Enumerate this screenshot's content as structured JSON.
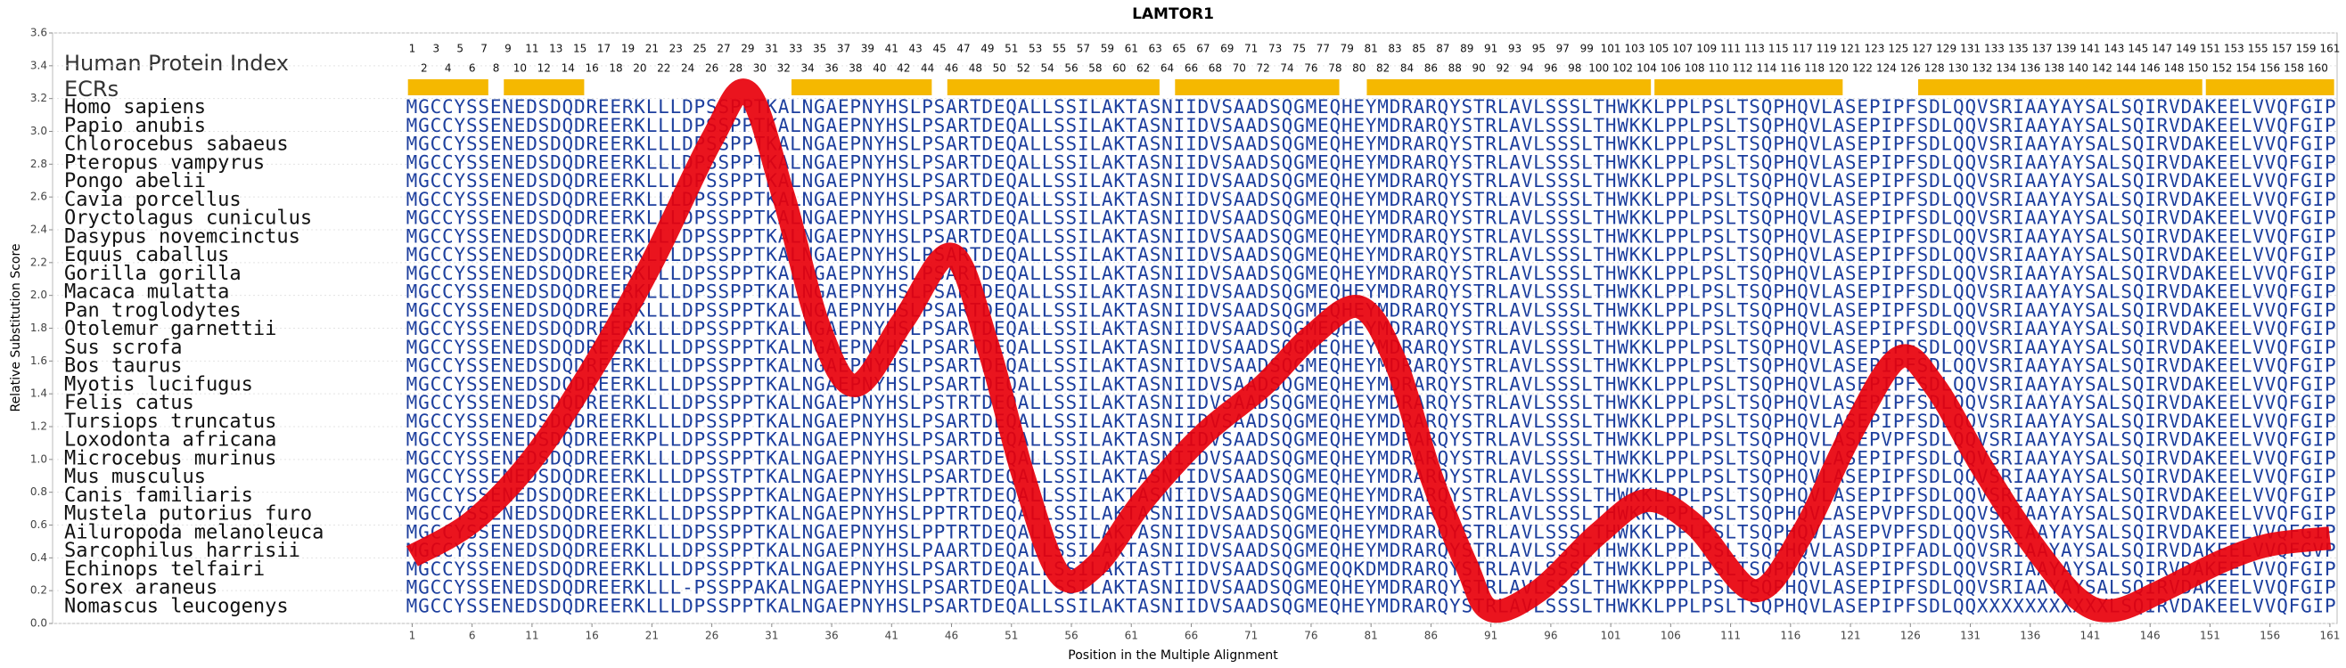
{
  "chart_data": {
    "type": "line",
    "title": "LAMTOR1",
    "xlabel": "Position in the Multiple Alignment",
    "ylabel": "Relative Substitution Score",
    "xlim": [
      -29,
      161.6
    ],
    "ylim": [
      0,
      3.6
    ],
    "xticks": [
      1,
      6,
      11,
      16,
      21,
      26,
      31,
      36,
      41,
      46,
      51,
      56,
      61,
      66,
      71,
      76,
      81,
      86,
      91,
      96,
      101,
      106,
      111,
      116,
      121,
      126,
      131,
      136,
      141,
      146,
      151,
      156,
      161
    ],
    "yticks": [
      {
        "value": 0,
        "label": "0.0"
      },
      0.2,
      0.4,
      0.6,
      0.8,
      {
        "value": 1,
        "label": "1.0"
      },
      1.2,
      1.4,
      1.6,
      1.8,
      {
        "value": 2,
        "label": "2.0"
      },
      2.2,
      2.4,
      2.6,
      2.8,
      {
        "value": 3,
        "label": "3.0"
      },
      3.2,
      3.4,
      3.6
    ],
    "grid": true,
    "color": "#e8000b",
    "x": [
      1,
      6,
      11,
      16,
      21,
      26,
      29,
      32,
      35,
      38,
      42,
      46,
      49,
      52,
      55,
      58,
      62,
      67,
      72,
      76,
      80,
      83,
      86,
      89,
      91,
      95,
      100,
      104,
      108,
      113,
      117,
      121,
      125,
      128,
      132,
      136,
      140,
      143,
      147,
      152,
      156,
      161
    ],
    "values": [
      0.41,
      0.62,
      1.0,
      1.55,
      2.2,
      2.95,
      3.24,
      2.6,
      1.8,
      1.45,
      1.85,
      2.25,
      1.7,
      0.9,
      0.3,
      0.35,
      0.75,
      1.15,
      1.45,
      1.75,
      1.93,
      1.6,
      0.9,
      0.35,
      0.08,
      0.2,
      0.55,
      0.75,
      0.6,
      0.2,
      0.55,
      1.15,
      1.62,
      1.45,
      0.95,
      0.5,
      0.15,
      0.08,
      0.2,
      0.38,
      0.48,
      0.52
    ],
    "index_label": "Human Protein Index",
    "ecr_label": "ECRs",
    "ecr_color": "#f5b800",
    "positions": [
      1,
      2,
      3,
      4,
      5,
      6,
      7,
      8,
      9,
      10,
      11,
      12,
      13,
      14,
      15,
      16,
      17,
      18,
      19,
      20,
      21,
      22,
      23,
      24,
      25,
      26,
      27,
      28,
      29,
      30,
      31,
      32,
      33,
      34,
      35,
      36,
      37,
      38,
      39,
      40,
      41,
      42,
      43,
      44,
      45,
      46,
      47,
      48,
      49,
      50,
      51,
      52,
      53,
      54,
      55,
      56,
      57,
      58,
      59,
      60,
      61,
      62,
      63,
      64,
      65,
      66,
      67,
      68,
      69,
      70,
      71,
      72,
      73,
      74,
      75,
      76,
      77,
      78,
      79,
      80,
      81,
      82,
      83,
      84,
      85,
      86,
      87,
      88,
      89,
      90,
      91,
      92,
      93,
      94,
      95,
      96,
      97,
      98,
      99,
      100,
      101,
      102,
      103,
      104,
      105,
      106,
      107,
      108,
      109,
      110,
      111,
      112,
      113,
      114,
      115,
      116,
      117,
      118,
      119,
      120,
      121,
      122,
      123,
      124,
      125,
      126,
      127,
      128,
      129,
      130,
      131,
      132,
      133,
      134,
      135,
      136,
      137,
      138,
      139,
      140,
      141,
      142,
      143,
      144,
      145,
      146,
      147,
      148,
      149,
      150,
      151,
      152,
      153,
      154,
      155,
      156,
      157,
      158,
      159,
      160,
      161
    ],
    "ecrs": [
      [
        1,
        7
      ],
      [
        9,
        15
      ],
      [
        33,
        44
      ],
      [
        46,
        63
      ],
      [
        65,
        78
      ],
      [
        81,
        104
      ],
      [
        105,
        120
      ],
      [
        127,
        150
      ],
      [
        151,
        161
      ]
    ],
    "species": [
      "Homo sapiens",
      "Papio anubis",
      "Chlorocebus sabaeus",
      "Pteropus vampyrus",
      "Pongo abelii",
      "Cavia porcellus",
      "Oryctolagus cuniculus",
      "Dasypus novemcinctus",
      "Equus caballus",
      "Gorilla gorilla",
      "Macaca mulatta",
      "Pan troglodytes",
      "Otolemur garnettii",
      "Sus scrofa",
      "Bos taurus",
      "Myotis lucifugus",
      "Felis catus",
      "Tursiops truncatus",
      "Loxodonta africana",
      "Microcebus murinus",
      "Mus musculus",
      "Canis familiaris",
      "Mustela putorius furo",
      "Ailuropoda melanoleuca",
      "Sarcophilus harrisii",
      "Echinops telfairi",
      "Sorex araneus",
      "Nomascus leucogenys"
    ],
    "sequences": [
      "MGCCYSSENEDSDQDREERKLLLDPSSPPTKALNGAEPNYHSLPSARTDEQALLSSILAKTASNIIDVSAADSQGMEQHEYMDRARQYSTRLAVLSSSLTHWKKLPPLPSLTSQPHQVLASEPIPFSDLQQVSRIAAYAYSALSQIRVDAKEELVVQFGIP",
      "MGCCYSSENEDSDQDREERKLLLDPSSPPTKALNGAEPNYHSLPSARTDEQALLSSILAKTASNIIDVSAADSQGMEQHEYMDRARQYSTRLAVLSSSLTHWKKLPPLPSLTSQPHQVLASEPIPFSDLQQVSRIAAYAYSALSQIRVDAKEELVVQFGIP",
      "MGCCYSSENEDSDQDREERKLLLDPSSPPTKALNGAEPNYHSLPSARTDEQALLSSILAKTASNIIDVSAADSQGMEQHEYMDRARQYSTRLAVLSSSLTHWKKLPPLPSLTSQPHQVLASEPIPFSDLQQVSRIAAYAYSALSQIRVDAKEELVVQFGIP",
      "MGCCYSSENEDSDQDREERKLLLDPSSPPTKALNGAEPNYHSLPSARTDEQALLSSILAKTASNIIDVSAADSQGMEQHEYMDRARQYSTRLAVLSSSLTHWKKLPPLPSLTSQPHQVLASEPIPFSDLQQVSRIAAYAYSALSQIRVDAKEELVVQFGIP",
      "MGCCYSSENEDSDQDREERKLLLDPSSPPTKALNGAEPNYHSLPSARTDEQALLSSILAKTASNIIDVSAADSQGMEQHEYMDRARQYSTRLAVLSSSLTHWKKLPPLPSLTSQPHQVLASEPIPFSDLQQVSRIAAYAYSALSQIRVDAKEELVVQFGIP",
      "MGCCYSSENEDSDQDREERKLLLDPSSPPTKALNGAEPNYHSLPSARTDEQALLSSILAKTASNIIDVSAADSQGMEQHEYMDRARQYSTRLAVLSSSLTHWKKLPPLPSLTSQPHQVLASEPIPFSDLQQVSRIAAYAYSALSQIRVDAKEELVVQFGIP",
      "MGCCYSSENEDSDQDREERKLLLDPSSPPTKALNGAEPNYHSLPSARTDEQALLSSILAKTASNIIDVSAADSQGMEQHEYMDRARQYSTRLAVLSSSLTHWKKLPPLPSLTSQPHQVLASEPIPFSDLQQVSRIAAYAYSALSQIRVDAKEELVVQFGIP",
      "MGCCYSSENEDSDQDREERKLLLDPSSPPTKALNGAEPNYHSLPSARTDEQALLSSILAKTASNIIDVSAADSQGMEQHEYMDRARQYSTRLAVLSSSLTHWKKLPPLPSLTSQPHQVLASEPIPFSDLQQVSRIAAYAYSALSQIRVDAKEELVVQFGIP",
      "MGCCYSSENEDSDQDREERKLLLDPSSPPTKALNGAEPNYHSLPSARTDEQALLSSILAKTASNIIDVSAADSQGMEQHEYMDRARQYSTRLAVLSSSLTHWKKLPPLPSLTSQPHQVLASEPIPFSDLQQVSRIAAYAYSALSQIRVDAKEELVVQFGIP",
      "MGCCYSSENEDSDQDREERKLLLDPSSPPTKALNGAEPNYHSLPSARTDEQALLSSILAKTASNIIDVSAADSQGMEQHEYMDRARQYSTRLAVLSSSLTHWKKLPPLPSLTSQPHQVLASEPIPFSDLQQVSRIAAYAYSALSQIRVDAKEELVVQFGIP",
      "MGCCYSSENEDSDQDREERKLLLDPSSPPTKALNGAEPNYHSLPSARTDEQALLSSILAKTASNIIDVSAADSQGMEQHEYMDRARQYSTRLAVLSSSLTHWKKLPPLPSLTSQPHQVLASEPIPFSDLQQVSRIAAYAYSALSQIRVDAKEELVVQFGIP",
      "MGCCYSSENEDSDQDREERKLLLDPSSPPTKALNGAEPNYHSLPSARTDEQALLSSILAKTASNIIDVSAADSQGMEQHEYMDRARQYSTRLAVLSSSLTHWKKLPPLPSLTSQPHQVLASEPIPFSDLQQVSRIAAYAYSALSQIRVDAKEELVVQFGIP",
      "MGCCYSSENEDSDQDREERKLLLDPSSPPTKALNGAEPNYHSLPSARTDEQALLSSILAKTASNIIDVSAADSQGMEQHEYMDRARQYSTRLAVLSSSLTHWKKLPPLPSLTSQPHQVLASEPIPFSDLQQVSRIAAYAYSALSQIRVDAKEELVVQFGIP",
      "MGCCYSSENEDSDQDREERKLLLDPSSPPTKALNGAEPNYHSLPSARTDEQALLSSILAKTASNIIDVSAADSQGMEQHEYMDRARQYSTRLAVLSSSLTHWKKLPPLPSLTSQPHQVLASEPIPFSDLQQVSRIAAYAYSALSQIRVDAKEELVVQFGIP",
      "MGCCYSSENEDSDQDREERKLLLDPSSPPTKALNGAEPNYHSLPSARTDEQALLSSILAKTASNIIDVSAADSQGMEQHEYMDRARQYSTRLAVLSSSLTHWKKLPPLPSLTSQPHQVLASEPIPFSDLQQVSRIAAYAYSALSQIRVDAKEELVVQFGIP",
      "MGCCYSSENEDSDQDREERKLLLDPSSPPTKALNGAEPNYHSLPSARTDEQALLSSILAKTASNIIDVSAADSQGMEQHEYMDRARQYSTRLAVLSSSLTHWKKLPPLPSLTSQPHQVLASEPIPFSDLQQVSRIAAYAYSALSQIRVDAKEELVVQFGIP",
      "MGCCYSSENEDSDQDREERKLLLDPSSPPTKALNGAEPNYHSLPSTRTDEQALLSSILAKTASNIIDVSAADSQGMEQHEYMDRARQYSTRLAVLSSSLTHWKKLPPLPSLTSQPHQVLASEPIPFSDLQQVSRIAAYAYSALSQIRVDAKEELVVQFGIP",
      "MGCCYSSENEDSDQDREERKLLLDPSSPPTKALNGAEPNYHSLPSARTDEQALLSSILAKTASNIIDVSAADSQGMEQHEYMDRARQYSTRLAVLSSSLTHWKKLPPLPSLTSQPHQVLASEPIPFSDLQQVSRIAAYAYSALSQIRVDAKEELVVQFGIP",
      "MGCCYSSENEDSDQDREERKPLLDPSSPPTKALNGAEPNYHSLPSARTDEQALLSSILAKTASNIIDVSAADSQGMEQHEYMDRARQYSTRLAVLSSSLTHWKKLPPLPSLTSQPHQVLASEPVPFSDLQQVSRIAAYAYSALSQIRVDAKEELVVQFGIP",
      "MGCCYSSENEDSDQDREERKLLLDPSSPPTKALNGAEPNYHSLPSARTDEQALLSSILAKTASNIIDVSAADSQGMEQHEYMDRARQYSTRLAVLSSSLTHWKKLPPLPSLTSQPHQVLASEPIPFSDLQQVSRIAAYAYSALSQIRVDAKEELVVQFGIP",
      "MGCCYSSENEDSDQDREERKLLLDPSSTPTKALNGAEPNYHSLPSARTDEQALLSSILAKTASNIIDVSAADSQGMEQHEYMDRARQYSTRLAVLSSSLTHWKKLPPLPSLTSQPHQVLASEPIPFSDLQQVSRIAAYAYSALSQIRVDAKEELVVQFGIP",
      "MGCCYSSENEDSDQDREERKLLLDPSSPPTKALNGAEPNYHSLPPTRTDEQALLSSILAKTASNIIDVSAADSQGMEQHEYMDRARQYSTRLAVLSSSLTHWKKLPPLPSLTSQPHQVLASEPIPFSDLQQVSRIAAYAYSALSQIRVDAKEELVVQFGIP",
      "MGCCYSSENEDSDQDREERKLLLDPSSPPTKALNGAEPNYHSLPPTRTDEQALLSSILAKTASNIIDVSAADSQGMEQHEYMDRARQYSTRLAVLSSSLTHWKKLPPLPSLTSQPHQVLASEPVPFSDLQQVSRIAAYAYSALSQIRVDAKEELVVQFGIP",
      "MGCCYSSENEDSDQDREERKLLLDPSSPPTKALNGAEPNYHSLPPTRTDEQALLSSILAKTASNIIDVSAADSQGMEQHEYMDRARQYSTRLAVLSSSLTHWKKLPPLPSLTSQPHQVLASEPVPFSDLQQVSRIAAYAYSALSQIRVDAKEELVVQFGIP",
      "MGCCYSSENEDSDQDREERKLLLDPSSPPTKALNGAEPNYHSLPAARTDEQALLSSILAKTASNIIDVSAADSQGMEQHEYMDRARQYSTRLAVLSSSLTHWKKLPPLPSLTSQPHQVLASDPIPFADLQQVSRIAAYAYSALSQIRVDAKEELVVQFGVP",
      "MGCCYSSENEDSDQDREERKLLLDPSSPPTKALNGAEPNYHSLPSARTDEQALLSSILAKTASTIIDVSAADSQGMEQQKDMDRARQYSTRLAVLSSSLTHWKKLPPLPSLTSQPHQVLASEPIPFSDLQQVSRIAAYAYSALSQIRVDAKEELVVQFGIP",
      "MGCCYSSENEDSDQDREERKLLL-PSSPPAKALNGAEPNYHSLPSARTDEQALLSSILAKTASNIIDVSAADSQGMEQHEYMDRARQYSTRLAVLSSSLTHWKKPPPLPSLTSQPHQVLASEPIPFSDLQQVSRIAAYAYSALSQIRVDAKEELVVQFGIP",
      "MGCCYSSENEDSDQDREERKLLLDPSSPPTKALNGAEPNYHSLPSARTDEQALLSSILAKTASNIIDVSAADSQGMEQHEYMDRARQYSTRLAVLSSSLTHWKKLPPLPSLTSQPHQVLASEPIPFSDLQQXXXXXXXXXXXLSQIRVDAKEELVVQFGIP"
    ]
  }
}
